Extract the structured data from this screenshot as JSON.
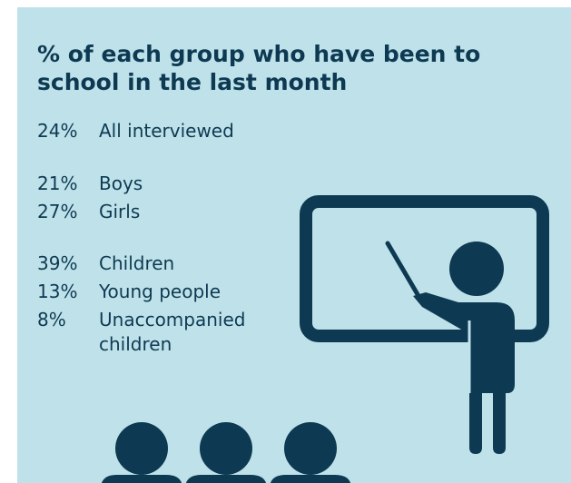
{
  "title": "% of each group who have been to school in the last month",
  "groups": [
    {
      "items": [
        {
          "percent": "24%",
          "label": "All interviewed"
        }
      ]
    },
    {
      "items": [
        {
          "percent": "21%",
          "label": "Boys"
        },
        {
          "percent": "27%",
          "label": "Girls"
        }
      ]
    },
    {
      "items": [
        {
          "percent": "39%",
          "label": "Children"
        },
        {
          "percent": "13%",
          "label": "Young people"
        },
        {
          "percent": "8%",
          "label": "Unaccompanied children"
        }
      ]
    }
  ]
}
